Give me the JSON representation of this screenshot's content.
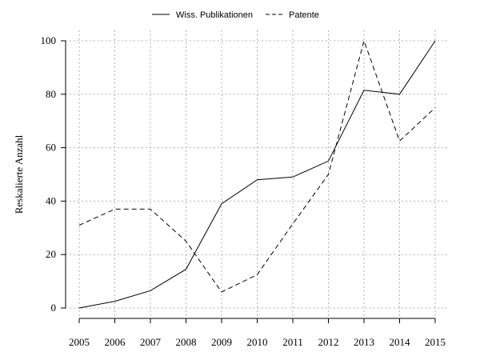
{
  "chart_data": {
    "type": "line",
    "title": "",
    "xlabel": "",
    "ylabel": "Reskalierte Anzahl",
    "x": [
      2005,
      2006,
      2007,
      2008,
      2009,
      2010,
      2011,
      2012,
      2013,
      2014,
      2015
    ],
    "xtick_labels": [
      "2005",
      "2006",
      "2007",
      "2008",
      "2009",
      "2010",
      "2011",
      "2012",
      "2013",
      "2014",
      "2015"
    ],
    "ylim": [
      -3,
      104
    ],
    "yticks": [
      0,
      20,
      40,
      60,
      80,
      100
    ],
    "ytick_labels": [
      "0",
      "20",
      "40",
      "60",
      "80",
      "100"
    ],
    "grid": true,
    "legend_position": "top-center",
    "series": [
      {
        "name": "Wiss. Publikationen",
        "style": "solid",
        "color": "#000000",
        "values": [
          0,
          2.5,
          6.5,
          14.5,
          39,
          48,
          49,
          55,
          81.5,
          80,
          100
        ]
      },
      {
        "name": "Patente",
        "style": "dashed",
        "color": "#000000",
        "values": [
          31,
          37,
          37,
          25,
          6,
          12.5,
          31.5,
          50,
          100,
          62.5,
          75
        ]
      }
    ]
  }
}
